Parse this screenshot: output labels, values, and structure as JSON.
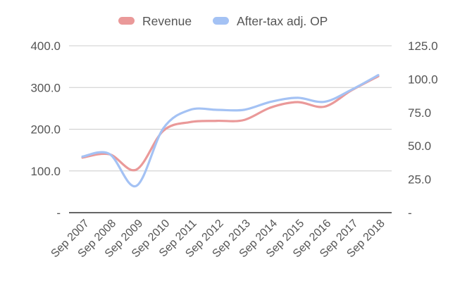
{
  "chart_data": {
    "type": "line",
    "title": "",
    "xlabel": "",
    "ylabel": "",
    "categories": [
      "Sep 2007",
      "Sep 2008",
      "Sep 2009",
      "Sep 2010",
      "Sep 2011",
      "Sep 2012",
      "Sep 2013",
      "Sep 2014",
      "Sep 2015",
      "Sep 2016",
      "Sep 2017",
      "Sep 2018"
    ],
    "y_left": {
      "min": 0,
      "max": 400,
      "ticks": [
        0,
        100,
        200,
        300,
        400
      ],
      "tick_labels": [
        "-",
        "100.0",
        "200.0",
        "300.0",
        "400.0"
      ]
    },
    "y_right": {
      "min": 0,
      "max": 125,
      "ticks": [
        0,
        25,
        50,
        75,
        100,
        125
      ],
      "tick_labels": [
        "-",
        "25.0",
        "50.0",
        "75.0",
        "100.0",
        "125.0"
      ]
    },
    "grid": true,
    "legend_position": "top-center",
    "series": [
      {
        "name": "Revenue",
        "axis": "left",
        "color": "#ea9999",
        "values": [
          132,
          140,
          103,
          196,
          217,
          220,
          222,
          252,
          265,
          254,
          293,
          327
        ]
      },
      {
        "name": "After-tax adj. OP",
        "axis": "right",
        "color": "#a4c2f4",
        "values": [
          42,
          44,
          20,
          63,
          77,
          77,
          77,
          83,
          86,
          83,
          92,
          103
        ]
      }
    ]
  }
}
